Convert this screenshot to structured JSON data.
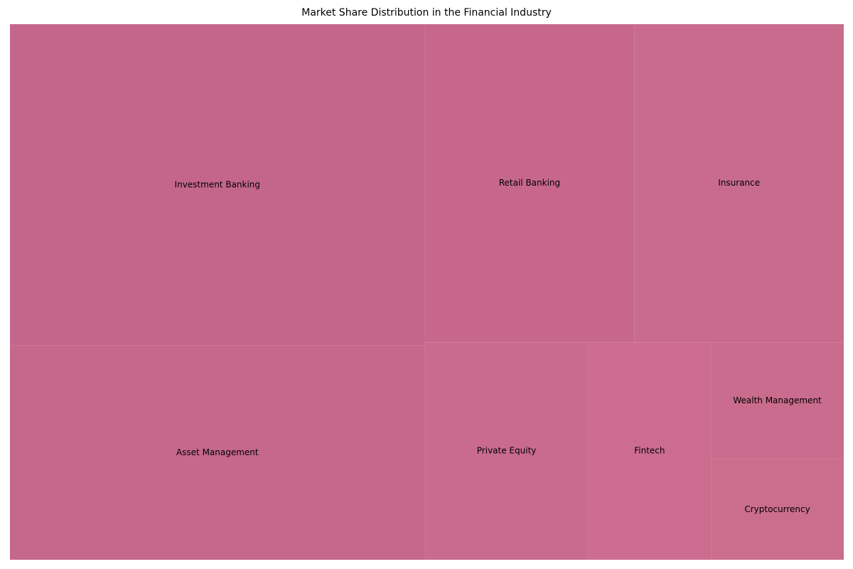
{
  "chart_data": {
    "type": "treemap",
    "title": "Market Share Distribution in the Financial Industry",
    "items": [
      {
        "label": "Investment Banking",
        "value": 30,
        "color": "#c4668b"
      },
      {
        "label": "Asset Management",
        "value": 20,
        "color": "#c5688b"
      },
      {
        "label": "Retail Banking",
        "value": 15,
        "color": "#c6678b"
      },
      {
        "label": "Insurance",
        "value": 15,
        "color": "#c86b8d"
      },
      {
        "label": "Private Equity",
        "value": 8,
        "color": "#c96b8e"
      },
      {
        "label": "Fintech",
        "value": 6,
        "color": "#cc6d8f"
      },
      {
        "label": "Wealth Management",
        "value": 3.5,
        "color": "#ca6c8d"
      },
      {
        "label": "Cryptocurrency",
        "value": 3,
        "color": "#cb6e8e"
      }
    ]
  }
}
